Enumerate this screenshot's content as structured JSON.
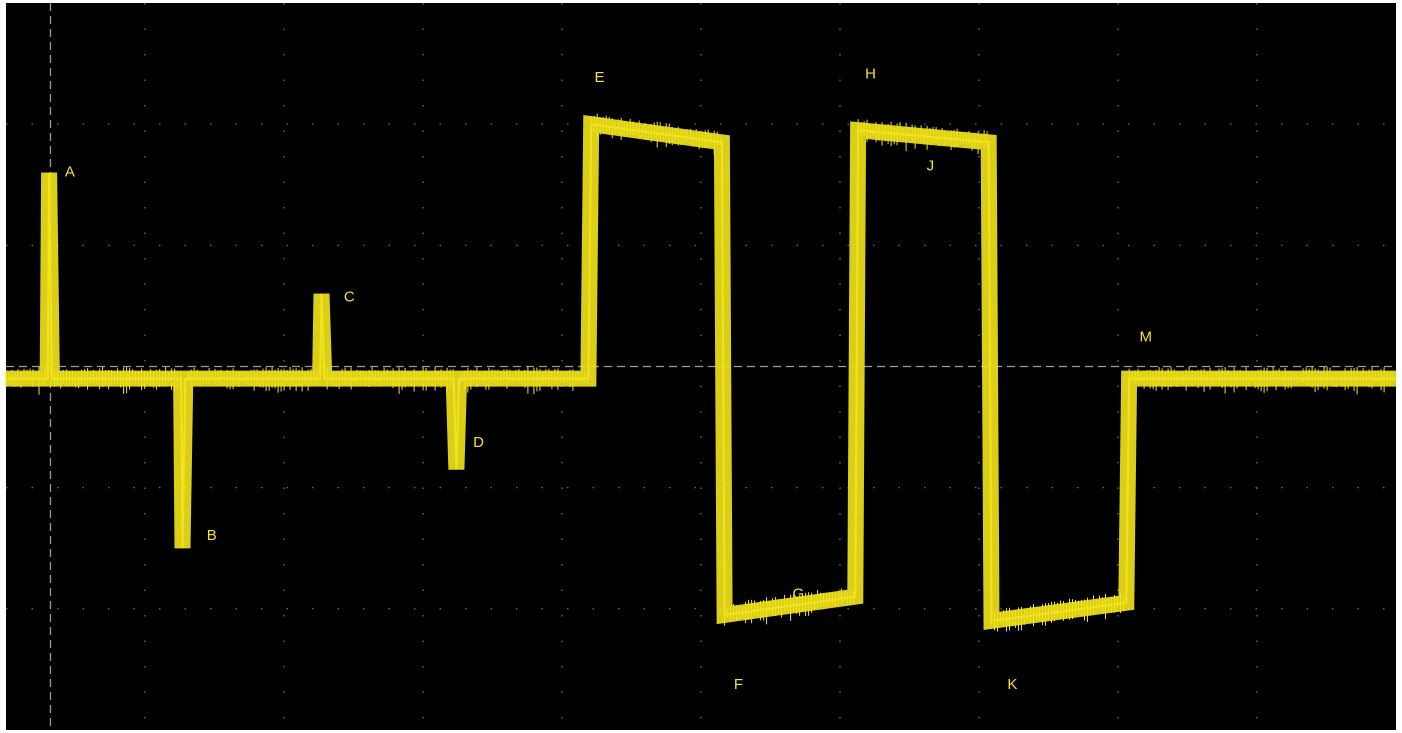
{
  "chart_data": {
    "type": "line",
    "title": "",
    "xlabel": "",
    "ylabel": "",
    "xlim": [
      0,
      10
    ],
    "ylim": [
      -3,
      3
    ],
    "grid": true,
    "trace_color": "#f2e41c",
    "grid_color": "#7a7a7a",
    "background_color": "#000000",
    "series": [
      {
        "x": [
          0.0,
          0.3,
          0.31,
          0.33,
          0.35,
          1.26,
          1.27,
          1.29,
          1.31,
          2.26,
          2.27,
          2.29,
          2.31,
          3.22,
          3.24,
          3.26,
          3.28,
          4.19,
          4.21,
          5.15,
          5.17,
          6.11,
          6.13,
          7.07,
          7.09,
          8.06,
          8.08,
          10.0
        ],
        "y": [
          -0.1,
          -0.1,
          1.6,
          -0.1,
          -0.1,
          -0.1,
          -1.5,
          -0.1,
          -0.1,
          -0.1,
          0.6,
          -0.1,
          -0.1,
          -0.1,
          -0.85,
          -0.1,
          -0.1,
          -0.1,
          2.0,
          1.85,
          -2.05,
          -1.9,
          1.95,
          1.85,
          -2.1,
          -1.95,
          -0.1,
          -0.1
        ]
      }
    ],
    "annotations": [
      {
        "label": "A",
        "x": 0.46,
        "y": 1.6
      },
      {
        "label": "B",
        "x": 1.48,
        "y": -1.4
      },
      {
        "label": "C",
        "x": 2.47,
        "y": 0.57
      },
      {
        "label": "D",
        "x": 3.4,
        "y": -0.63
      },
      {
        "label": "E",
        "x": 4.27,
        "y": 2.38
      },
      {
        "label": "F",
        "x": 5.27,
        "y": -2.63
      },
      {
        "label": "G",
        "x": 5.7,
        "y": -1.88
      },
      {
        "label": "H",
        "x": 6.22,
        "y": 2.41
      },
      {
        "label": "J",
        "x": 6.65,
        "y": 1.65
      },
      {
        "label": "K",
        "x": 7.24,
        "y": -2.63
      },
      {
        "label": "M",
        "x": 8.2,
        "y": 0.24
      }
    ]
  }
}
